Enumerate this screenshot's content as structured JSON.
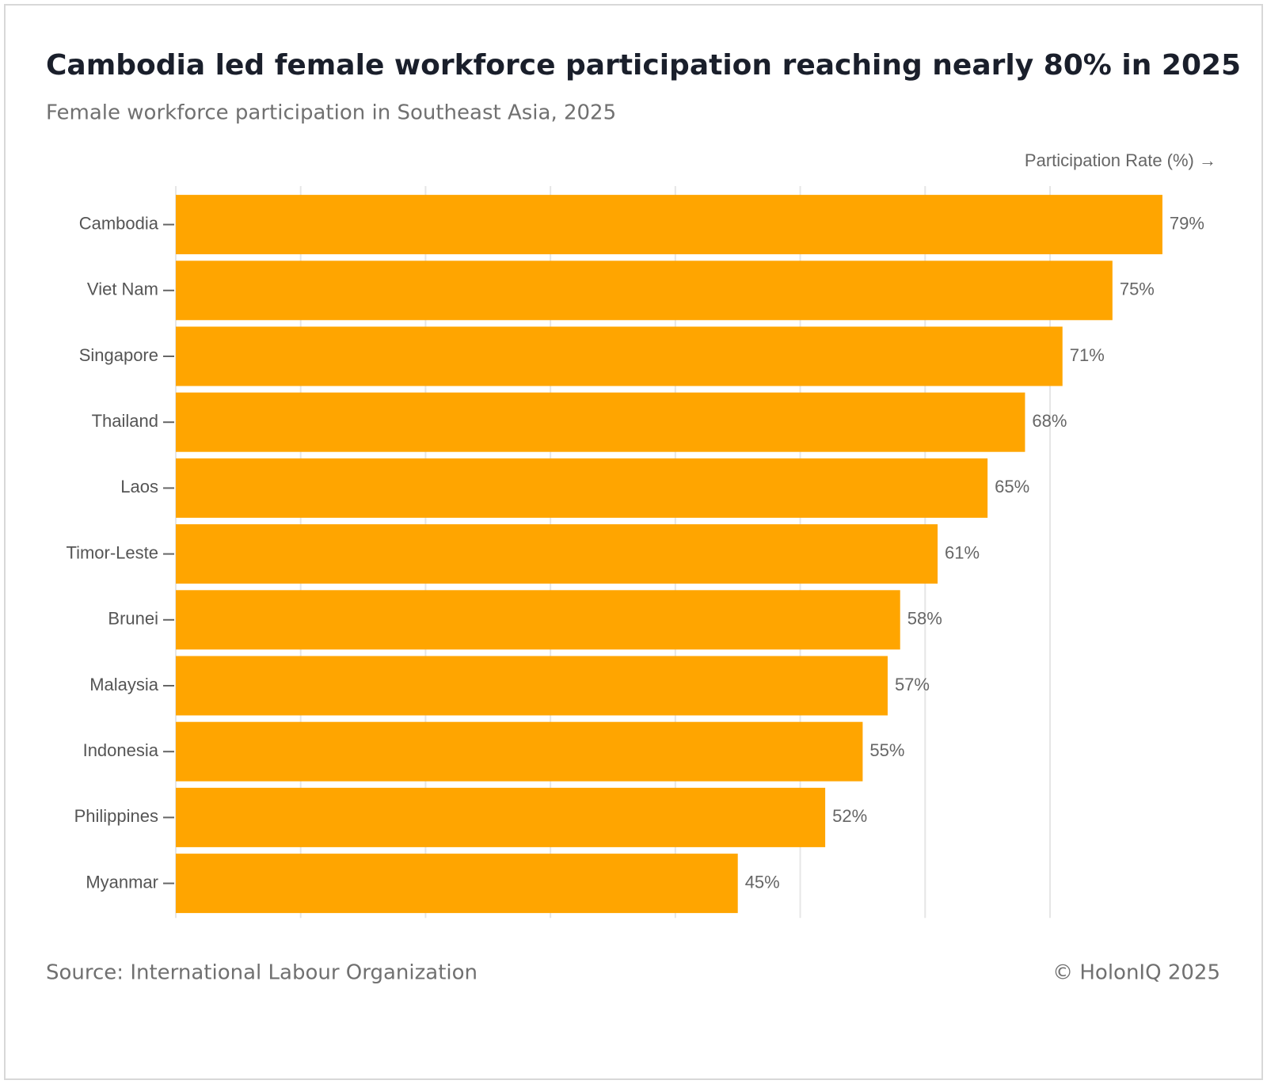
{
  "chart_data": {
    "type": "barh",
    "title": "Cambodia led female workforce participation reaching nearly 80% in 2025",
    "subtitle": "Female workforce participation in Southeast Asia, 2025",
    "x_label": "Participation Rate (%) →",
    "categories": [
      "Cambodia",
      "Viet Nam",
      "Singapore",
      "Thailand",
      "Laos",
      "Timor-Leste",
      "Brunei",
      "Malaysia",
      "Indonesia",
      "Philippines",
      "Myanmar"
    ],
    "values": [
      79,
      75,
      71,
      68,
      65,
      61,
      58,
      57,
      55,
      52,
      45
    ],
    "value_labels": [
      "79%",
      "75%",
      "71%",
      "68%",
      "65%",
      "61%",
      "58%",
      "57%",
      "55%",
      "52%",
      "45%"
    ],
    "color": "#ffa500",
    "xlim": [
      0,
      83
    ],
    "xticks": [
      0,
      10,
      20,
      30,
      40,
      50,
      60,
      70
    ],
    "grid": true,
    "source": "Source: International Labour Organization",
    "credit": "© HolonIQ 2025"
  }
}
